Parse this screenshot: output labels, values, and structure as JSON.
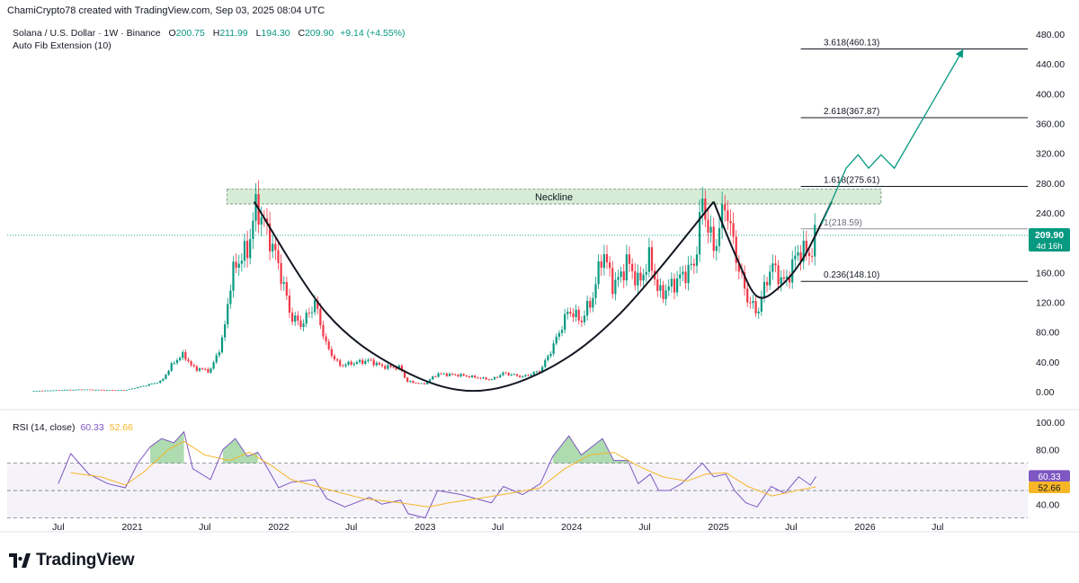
{
  "header": {
    "text": "ChamiCrypto78 created with TradingView.com, Sep 03, 2025 08:04 UTC"
  },
  "legend": {
    "symbol": "Solana / U.S. Dollar · 1W · Binance",
    "o_label": "O",
    "o": "200.75",
    "h_label": "H",
    "h": "211.99",
    "l_label": "L",
    "l": "194.30",
    "c_label": "C",
    "c": "209.90",
    "change": "+9.14 (+4.55%)",
    "indicator": "Auto Fib Extension (10)"
  },
  "rsi_legend": {
    "name": "RSI (14, close)",
    "value": "60.33",
    "ma": "52.66"
  },
  "price_tag": {
    "value": "209.90",
    "countdown": "4d 16h"
  },
  "rsi_tags": {
    "value": "60.33",
    "ma": "52.66"
  },
  "brand": {
    "name": "TradingView"
  },
  "colors": {
    "up": "#089981",
    "down": "#f23645",
    "fib": "#131722",
    "rsi": "#7e57c2",
    "rsi_ma": "#f7b626",
    "neckline_fill": "#c8e6c9",
    "arrow": "#089981"
  },
  "chart_data": [
    {
      "type": "candlestick",
      "title": "Solana / U.S. Dollar · 1W · Binance",
      "x_ticks": [
        "Jul",
        "2021",
        "Jul",
        "2022",
        "Jul",
        "2023",
        "Jul",
        "2024",
        "Jul",
        "2025",
        "Jul",
        "2026",
        "Jul"
      ],
      "x_tick_dates": [
        "2020-07-01",
        "2021-01-01",
        "2021-07-01",
        "2022-01-01",
        "2022-07-01",
        "2023-01-01",
        "2023-07-01",
        "2024-01-01",
        "2024-07-01",
        "2025-01-01",
        "2025-07-01",
        "2026-01-01",
        "2026-07-01"
      ],
      "y_ticks": [
        0,
        40,
        80,
        120,
        160,
        200,
        240,
        280,
        320,
        360,
        400,
        440,
        480
      ],
      "y_tick_labels": [
        "0.00",
        "40.00",
        "80.00",
        "120.00",
        "160.00",
        "200.00",
        "240.00",
        "280.00",
        "320.00",
        "360.00",
        "400.00",
        "440.00",
        "480.00"
      ],
      "ylim": [
        0,
        480
      ],
      "series": [
        {
          "type": "close",
          "points": [
            [
              "2020-05-01",
              1
            ],
            [
              "2020-07-01",
              2
            ],
            [
              "2020-09-01",
              3
            ],
            [
              "2020-11-01",
              2
            ],
            [
              "2020-12-15",
              2
            ],
            [
              "2021-02-01",
              8
            ],
            [
              "2021-03-15",
              14
            ],
            [
              "2021-04-15",
              40
            ],
            [
              "2021-05-10",
              50
            ],
            [
              "2021-06-01",
              32
            ],
            [
              "2021-07-15",
              28
            ],
            [
              "2021-08-15",
              70
            ],
            [
              "2021-09-01",
              140
            ],
            [
              "2021-09-15",
              170
            ],
            [
              "2021-10-15",
              190
            ],
            [
              "2021-11-06",
              250
            ],
            [
              "2021-12-01",
              220
            ],
            [
              "2022-01-01",
              170
            ],
            [
              "2022-02-01",
              100
            ],
            [
              "2022-03-01",
              90
            ],
            [
              "2022-04-01",
              120
            ],
            [
              "2022-05-01",
              60
            ],
            [
              "2022-06-01",
              35
            ],
            [
              "2022-07-01",
              38
            ],
            [
              "2022-08-15",
              42
            ],
            [
              "2022-09-15",
              34
            ],
            [
              "2022-11-01",
              32
            ],
            [
              "2022-11-15",
              14
            ],
            [
              "2022-12-28",
              10
            ],
            [
              "2023-02-01",
              24
            ],
            [
              "2023-04-01",
              22
            ],
            [
              "2023-06-15",
              16
            ],
            [
              "2023-07-15",
              25
            ],
            [
              "2023-09-01",
              20
            ],
            [
              "2023-10-15",
              28
            ],
            [
              "2023-11-15",
              60
            ],
            [
              "2023-12-25",
              110
            ],
            [
              "2024-01-25",
              95
            ],
            [
              "2024-02-25",
              130
            ],
            [
              "2024-03-18",
              190
            ],
            [
              "2024-04-15",
              140
            ],
            [
              "2024-05-20",
              175
            ],
            [
              "2024-06-15",
              145
            ],
            [
              "2024-07-15",
              180
            ],
            [
              "2024-08-05",
              130
            ],
            [
              "2024-09-01",
              140
            ],
            [
              "2024-10-01",
              155
            ],
            [
              "2024-11-01",
              170
            ],
            [
              "2024-11-22",
              255
            ],
            [
              "2024-12-20",
              190
            ],
            [
              "2025-01-19",
              255
            ],
            [
              "2025-02-10",
              190
            ],
            [
              "2025-03-10",
              130
            ],
            [
              "2025-04-07",
              105
            ],
            [
              "2025-05-12",
              170
            ],
            [
              "2025-06-15",
              145
            ],
            [
              "2025-07-20",
              190
            ],
            [
              "2025-08-18",
              185
            ],
            [
              "2025-09-01",
              209.9
            ]
          ]
        }
      ],
      "fib_levels": [
        {
          "label": "0.236(148.10)",
          "value": 148.1
        },
        {
          "label": "1(218.59)",
          "value": 218.59
        },
        {
          "label": "1.618(275.61)",
          "value": 275.61
        },
        {
          "label": "2.618(367.87)",
          "value": 367.87
        },
        {
          "label": "3.618(460.13)",
          "value": 460.13
        }
      ],
      "neckline": {
        "label": "Neckline",
        "from": "2021-08-25",
        "to": "2026-02-10",
        "range": [
          252,
          272
        ]
      },
      "cup_curve": [
        [
          "2021-11-01",
          255
        ],
        [
          "2022-05-01",
          105
        ],
        [
          "2022-11-01",
          30
        ],
        [
          "2023-05-01",
          1
        ],
        [
          "2023-11-01",
          30
        ],
        [
          "2024-05-01",
          105
        ],
        [
          "2024-12-20",
          255
        ]
      ],
      "handle_curve": [
        [
          "2024-12-20",
          255
        ],
        [
          "2025-02-15",
          180
        ],
        [
          "2025-04-07",
          128
        ],
        [
          "2025-06-01",
          140
        ],
        [
          "2025-08-01",
          180
        ],
        [
          "2025-10-10",
          255
        ]
      ],
      "projection": [
        [
          "2025-09-15",
          225
        ],
        [
          "2025-10-15",
          262
        ],
        [
          "2025-11-15",
          300
        ],
        [
          "2025-12-15",
          318
        ],
        [
          "2026-01-10",
          300
        ],
        [
          "2026-02-10",
          318
        ],
        [
          "2026-03-15",
          300
        ],
        [
          "2026-09-01",
          458
        ]
      ],
      "last_price": 209.9
    },
    {
      "type": "line",
      "title": "RSI (14, close)",
      "y_ticks": [
        40,
        60,
        80,
        100
      ],
      "y_tick_labels": [
        "40.00",
        "60.00",
        "80.00",
        "100.00"
      ],
      "ylim": [
        29,
        100
      ],
      "bands": [
        30,
        50,
        70
      ],
      "series": [
        {
          "name": "RSI",
          "color": "#7e57c2",
          "points": [
            [
              "2020-07-01",
              55
            ],
            [
              "2020-08-01",
              77
            ],
            [
              "2020-09-15",
              62
            ],
            [
              "2020-11-01",
              55
            ],
            [
              "2020-12-15",
              52
            ],
            [
              "2021-01-15",
              70
            ],
            [
              "2021-02-15",
              82
            ],
            [
              "2021-03-15",
              88
            ],
            [
              "2021-04-15",
              85
            ],
            [
              "2021-05-10",
              93
            ],
            [
              "2021-06-01",
              66
            ],
            [
              "2021-07-15",
              58
            ],
            [
              "2021-08-15",
              80
            ],
            [
              "2021-09-15",
              88
            ],
            [
              "2021-10-15",
              75
            ],
            [
              "2021-11-10",
              78
            ],
            [
              "2021-12-01",
              68
            ],
            [
              "2022-01-01",
              52
            ],
            [
              "2022-02-01",
              56
            ],
            [
              "2022-04-01",
              58
            ],
            [
              "2022-05-01",
              44
            ],
            [
              "2022-06-15",
              38
            ],
            [
              "2022-08-15",
              45
            ],
            [
              "2022-09-15",
              40
            ],
            [
              "2022-11-01",
              43
            ],
            [
              "2022-11-20",
              33
            ],
            [
              "2023-01-01",
              30
            ],
            [
              "2023-02-01",
              50
            ],
            [
              "2023-04-01",
              47
            ],
            [
              "2023-06-15",
              41
            ],
            [
              "2023-07-15",
              53
            ],
            [
              "2023-09-01",
              47
            ],
            [
              "2023-10-15",
              55
            ],
            [
              "2023-11-15",
              75
            ],
            [
              "2023-12-25",
              90
            ],
            [
              "2024-01-25",
              76
            ],
            [
              "2024-03-18",
              88
            ],
            [
              "2024-04-15",
              72
            ],
            [
              "2024-05-20",
              72
            ],
            [
              "2024-06-15",
              55
            ],
            [
              "2024-07-15",
              62
            ],
            [
              "2024-08-05",
              50
            ],
            [
              "2024-09-01",
              50
            ],
            [
              "2024-10-01",
              55
            ],
            [
              "2024-11-22",
              70
            ],
            [
              "2024-12-20",
              60
            ],
            [
              "2025-01-19",
              62
            ],
            [
              "2025-02-10",
              50
            ],
            [
              "2025-03-10",
              41
            ],
            [
              "2025-04-07",
              38
            ],
            [
              "2025-05-12",
              53
            ],
            [
              "2025-06-15",
              48
            ],
            [
              "2025-07-20",
              60
            ],
            [
              "2025-08-18",
              54
            ],
            [
              "2025-09-01",
              60.33
            ]
          ]
        },
        {
          "name": "RSI-based MA",
          "color": "#f7b626",
          "points": [
            [
              "2020-08-01",
              63
            ],
            [
              "2020-10-15",
              60
            ],
            [
              "2020-12-15",
              54
            ],
            [
              "2021-02-01",
              64
            ],
            [
              "2021-04-01",
              80
            ],
            [
              "2021-05-10",
              86
            ],
            [
              "2021-07-01",
              76
            ],
            [
              "2021-09-01",
              72
            ],
            [
              "2021-10-20",
              78
            ],
            [
              "2021-12-15",
              68
            ],
            [
              "2022-02-01",
              58
            ],
            [
              "2022-05-01",
              51
            ],
            [
              "2022-08-01",
              44
            ],
            [
              "2022-11-01",
              41
            ],
            [
              "2023-01-10",
              38
            ],
            [
              "2023-03-01",
              41
            ],
            [
              "2023-06-01",
              45
            ],
            [
              "2023-08-01",
              48
            ],
            [
              "2023-10-15",
              52
            ],
            [
              "2023-12-15",
              66
            ],
            [
              "2024-02-15",
              76
            ],
            [
              "2024-04-15",
              78
            ],
            [
              "2024-06-15",
              68
            ],
            [
              "2024-08-15",
              60
            ],
            [
              "2024-10-15",
              57
            ],
            [
              "2024-12-01",
              62
            ],
            [
              "2025-01-20",
              63
            ],
            [
              "2025-03-15",
              53
            ],
            [
              "2025-05-15",
              46
            ],
            [
              "2025-07-15",
              50
            ],
            [
              "2025-09-01",
              52.66
            ]
          ]
        }
      ],
      "last_value": 60.33,
      "last_ma": 52.66
    }
  ]
}
